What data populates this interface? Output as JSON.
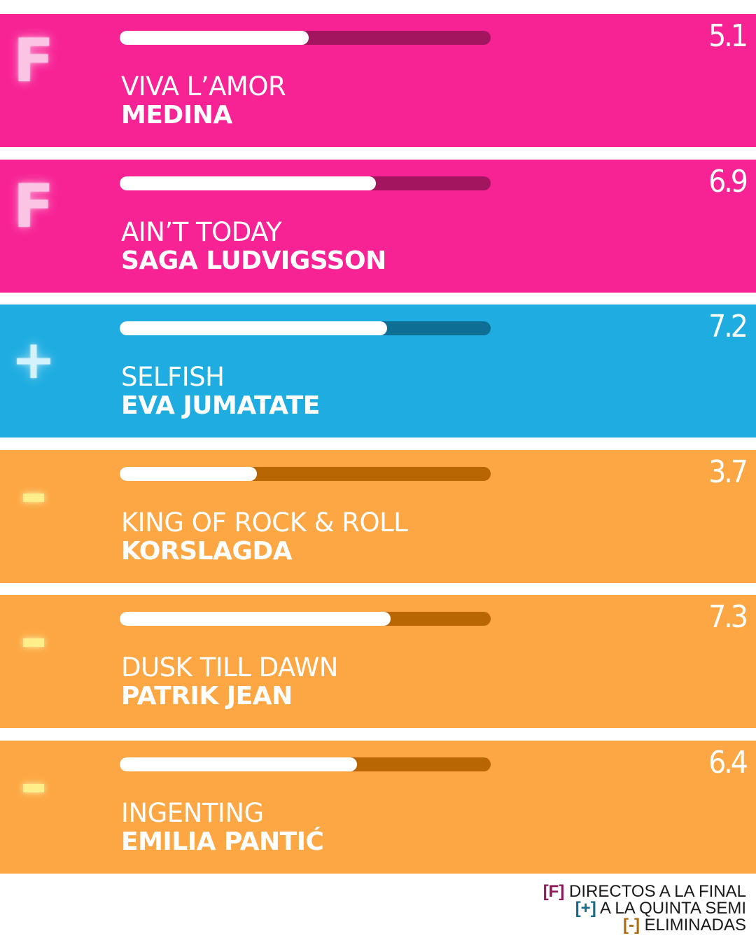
{
  "colors": {
    "final_bg": "#f72395",
    "final_track": "#a3155e",
    "final_badge": "#fbc4e4",
    "semi_bg": "#1fade1",
    "semi_track": "#0e6e94",
    "semi_badge": "#d4f2fc",
    "out_bg": "#fca743",
    "out_track": "#b86604",
    "out_badge": "#ffef8a",
    "legend_final": "#8c1a5a",
    "legend_semi": "#126a8c",
    "legend_out": "#b06a10"
  },
  "chart_data": {
    "type": "bar",
    "orientation": "horizontal",
    "xlim": [
      0,
      10
    ],
    "entries": [
      {
        "badge": "F",
        "status": "final",
        "song": "VIVA L’AMOR",
        "artist": "MEDINA",
        "score": 5.1,
        "score_label": "5.1"
      },
      {
        "badge": "F",
        "status": "final",
        "song": "AIN’T TODAY",
        "artist": "SAGA LUDVIGSSON",
        "score": 6.9,
        "score_label": "6.9"
      },
      {
        "badge": "+",
        "status": "semi",
        "song": "SELFISH",
        "artist": "EVA JUMATATE",
        "score": 7.2,
        "score_label": "7.2"
      },
      {
        "badge": "-",
        "status": "out",
        "song": "KING OF ROCK & ROLL",
        "artist": "KORSLAGDA",
        "score": 3.7,
        "score_label": "3.7"
      },
      {
        "badge": "-",
        "status": "out",
        "song": "DUSK TILL DAWN",
        "artist": "PATRIK JEAN",
        "score": 7.3,
        "score_label": "7.3"
      },
      {
        "badge": "-",
        "status": "out",
        "song": "INGENTING",
        "artist": "EMILIA PANTIĆ",
        "score": 6.4,
        "score_label": "6.4"
      }
    ],
    "legend": [
      {
        "key": "[F]",
        "label": "DIRECTOS A LA FINAL",
        "status": "final"
      },
      {
        "key": "[+]",
        "label": "A LA QUINTA SEMI",
        "status": "semi"
      },
      {
        "key": "[-]",
        "label": "ELIMINADAS",
        "status": "out"
      }
    ]
  }
}
